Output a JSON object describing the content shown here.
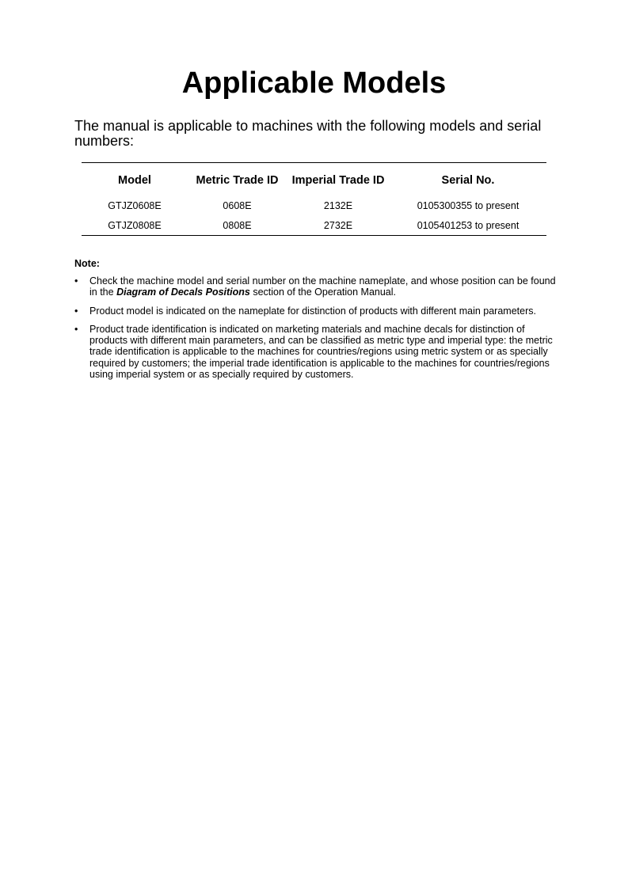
{
  "title": "Applicable Models",
  "intro": "The manual is applicable to machines with the following models and serial numbers:",
  "table": {
    "headers": [
      "Model",
      "Metric Trade ID",
      "Imperial Trade ID",
      "Serial No."
    ],
    "rows": [
      [
        "GTJZ0608E",
        "0608E",
        "2132E",
        "0105300355 to present"
      ],
      [
        "GTJZ0808E",
        "0808E",
        "2732E",
        "0105401253 to present"
      ]
    ]
  },
  "note": {
    "label": "Note:",
    "bullet": "•",
    "items": [
      {
        "before": "Check the machine model and serial number on the machine nameplate, and whose position can be found in the ",
        "emphasis": "Diagram of Decals Positions",
        "after": " section of the Operation Manual."
      },
      {
        "before": "Product model is indicated on the nameplate for distinction of products with different main parameters."
      },
      {
        "before": "Product trade identification is indicated on marketing materials and machine decals for distinction of products with different main parameters, and can be classified as metric type and imperial type: the metric trade identification is applicable to the machines for countries/regions using metric system or as specially required by customers; the imperial trade identification is applicable to the machines for countries/regions using imperial system or as specially required by customers."
      }
    ]
  }
}
